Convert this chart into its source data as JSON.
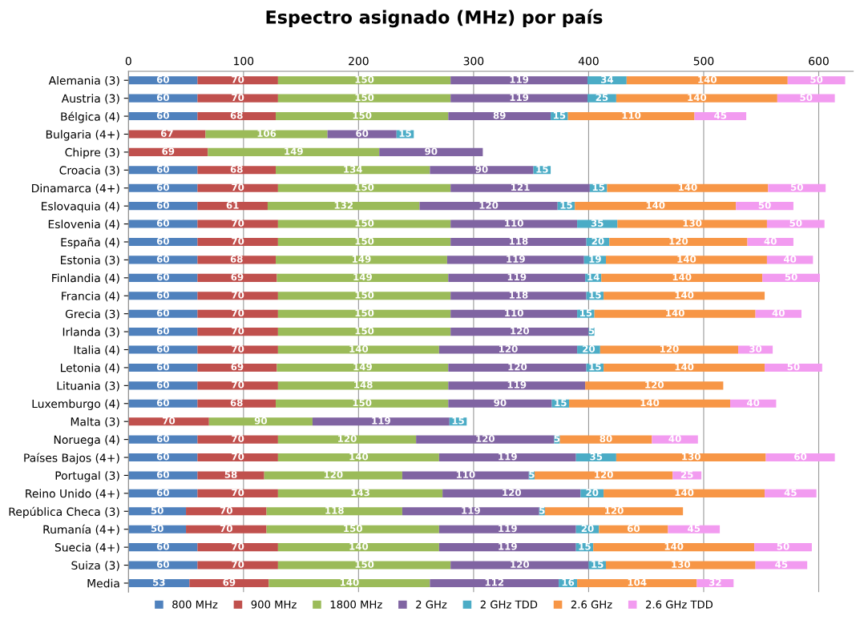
{
  "chart_data": {
    "type": "bar",
    "orientation": "horizontal",
    "stacked": true,
    "data_labels": true,
    "grid": "x",
    "legend": "bottom",
    "title": "Espectro asignado (MHz) por país",
    "categories": [
      "Alemania (3)",
      "Austria (3)",
      "Bélgica (4)",
      "Bulgaria (4+)",
      "Chipre (3)",
      "Croacia (3)",
      "Dinamarca (4+)",
      "Eslovaquia (4)",
      "Eslovenia (4)",
      "España (4)",
      "Estonia (3)",
      "Finlandia (4)",
      "Francia (4)",
      "Grecia (3)",
      "Irlanda (3)",
      "Italia (4)",
      "Letonia (4)",
      "Lituania (3)",
      "Luxemburgo (4)",
      "Malta (3)",
      "Noruega (4)",
      "Países Bajos (4+)",
      "Portugal (3)",
      "Reino Unido (4+)",
      "República Checa (3)",
      "Rumanía (4+)",
      "Suecia (4+)",
      "Suiza (3)",
      "Media"
    ],
    "xlim": [
      0,
      630
    ],
    "xticks": [
      0,
      100,
      200,
      300,
      400,
      500,
      600
    ],
    "series": [
      {
        "name": "800 MHz",
        "color": "#4f81bd",
        "values": [
          60,
          60,
          60,
          null,
          null,
          60,
          60,
          60,
          60,
          60,
          60,
          60,
          60,
          60,
          60,
          60,
          60,
          60,
          60,
          null,
          60,
          60,
          60,
          60,
          50,
          50,
          60,
          60,
          53
        ]
      },
      {
        "name": "900 MHz",
        "color": "#c0504d",
        "values": [
          70,
          70,
          68,
          67,
          69,
          68,
          70,
          61,
          70,
          70,
          68,
          69,
          70,
          70,
          70,
          70,
          69,
          70,
          68,
          70,
          70,
          70,
          58,
          70,
          70,
          70,
          70,
          70,
          69
        ]
      },
      {
        "name": "1800 MHz",
        "color": "#9bbb59",
        "values": [
          150,
          150,
          150,
          106,
          149,
          134,
          150,
          132,
          150,
          150,
          149,
          149,
          150,
          150,
          150,
          140,
          149,
          148,
          150,
          90,
          120,
          140,
          120,
          143,
          118,
          150,
          140,
          150,
          140
        ]
      },
      {
        "name": "2 GHz",
        "color": "#8064a2",
        "values": [
          119,
          119,
          89,
          60,
          90,
          90,
          121,
          120,
          110,
          118,
          119,
          119,
          118,
          110,
          120,
          120,
          120,
          119,
          90,
          119,
          120,
          119,
          110,
          120,
          119,
          119,
          119,
          120,
          112
        ]
      },
      {
        "name": "2 GHz TDD",
        "color": "#4bacc6",
        "values": [
          34,
          25,
          15,
          15,
          null,
          15,
          15,
          15,
          35,
          20,
          19,
          14,
          15,
          15,
          5,
          20,
          15,
          null,
          15,
          15,
          5,
          35,
          5,
          20,
          5,
          20,
          15,
          15,
          16
        ]
      },
      {
        "name": "2.6 GHz",
        "color": "#f79646",
        "values": [
          140,
          140,
          110,
          null,
          null,
          null,
          140,
          140,
          130,
          120,
          140,
          140,
          140,
          140,
          null,
          120,
          140,
          120,
          140,
          null,
          80,
          130,
          120,
          140,
          120,
          60,
          140,
          130,
          104
        ]
      },
      {
        "name": "2.6 GHz TDD",
        "color": "#f29bf0",
        "values": [
          50,
          50,
          45,
          null,
          null,
          null,
          50,
          50,
          50,
          40,
          40,
          50,
          null,
          40,
          null,
          30,
          50,
          null,
          40,
          null,
          40,
          60,
          25,
          45,
          null,
          45,
          50,
          45,
          32
        ]
      }
    ]
  }
}
